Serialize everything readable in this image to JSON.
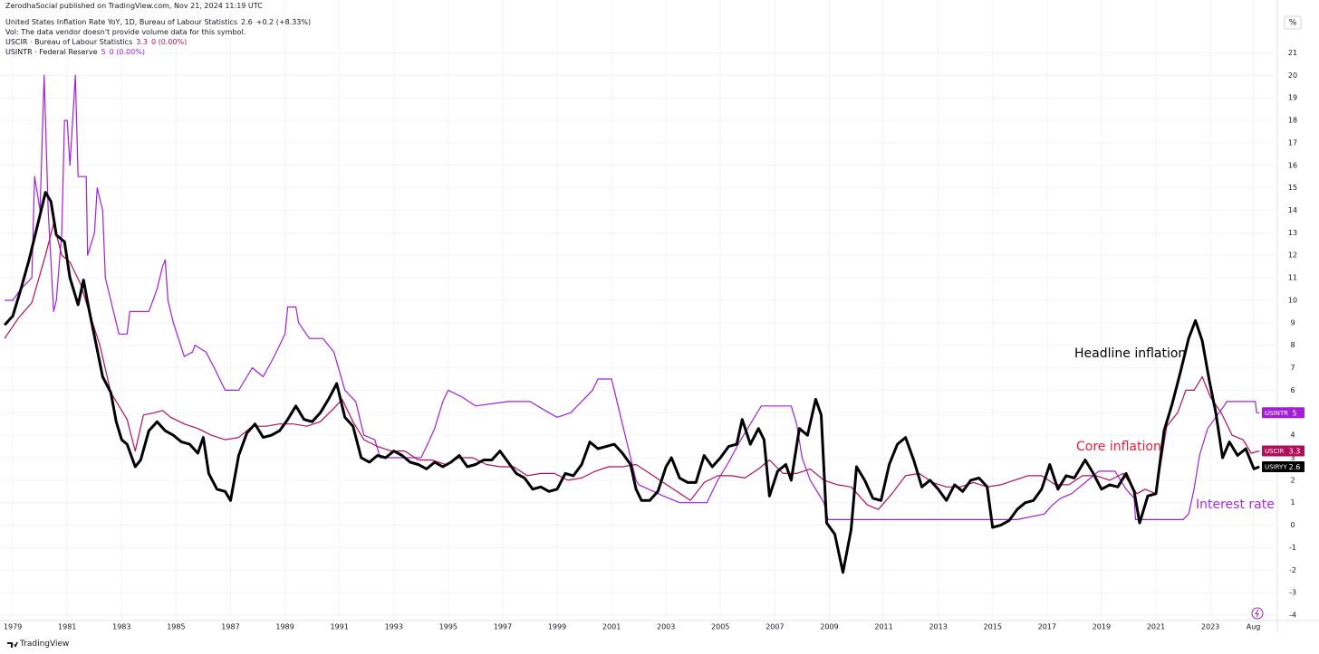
{
  "header": {
    "published": "ZerodhaSocial published on TradingView.com, Nov 21, 2024 11:19 UTC",
    "volume_note": "Vol: The data vendor doesn't provide volume data for this symbol.",
    "unit": "%",
    "footer": "TradingView"
  },
  "chart_data": {
    "type": "line",
    "annotations": [
      "Headline inflation",
      "Core inflation",
      "Interest rate"
    ],
    "xlim": [
      1978.53,
      2025.46
    ],
    "xticks": [
      1979,
      1981,
      1983,
      1985,
      1987,
      1989,
      1991,
      1993,
      1995,
      1997,
      1999,
      2001,
      2003,
      2005,
      2007,
      2009,
      2011,
      2013,
      2015,
      2017,
      2019,
      2021,
      2023,
      {
        "value": 2024.58,
        "label": "Aug"
      }
    ],
    "ylim": [
      -4.4,
      22.95
    ],
    "yticks": [
      -4,
      -3,
      -2,
      -1,
      0,
      1,
      2,
      3,
      4,
      5,
      6,
      7,
      8,
      9,
      10,
      11,
      12,
      13,
      14,
      15,
      16,
      17,
      18,
      19,
      20,
      21
    ],
    "grid": true,
    "series": [
      {
        "name": "United States Inflation Rate YoY, 1D, Bureau of Labour Statistics",
        "symbol": "USIRYY",
        "last": 2.6,
        "change": "+0.2 (+8.33%)",
        "color": "#000000",
        "width": 3,
        "x": [
          1978.7,
          1979.0,
          1979.3,
          1979.6,
          1979.9,
          1980.2,
          1980.4,
          1980.6,
          1980.9,
          1981.1,
          1981.4,
          1981.6,
          1981.8,
          1982.0,
          1982.3,
          1982.6,
          1982.8,
          1983.0,
          1983.2,
          1983.5,
          1983.7,
          1984.0,
          1984.3,
          1984.6,
          1984.9,
          1985.2,
          1985.5,
          1985.8,
          1986.0,
          1986.2,
          1986.5,
          1986.8,
          1987.0,
          1987.3,
          1987.6,
          1987.9,
          1988.2,
          1988.5,
          1988.8,
          1989.1,
          1989.4,
          1989.7,
          1990.0,
          1990.3,
          1990.6,
          1990.9,
          1991.2,
          1991.5,
          1991.8,
          1992.1,
          1992.4,
          1992.7,
          1993.0,
          1993.3,
          1993.6,
          1993.9,
          1994.2,
          1994.5,
          1994.8,
          1995.1,
          1995.4,
          1995.7,
          1996.0,
          1996.3,
          1996.6,
          1996.9,
          1997.2,
          1997.5,
          1997.8,
          1998.1,
          1998.4,
          1998.7,
          1999.0,
          1999.3,
          1999.6,
          1999.9,
          2000.2,
          2000.5,
          2000.8,
          2001.1,
          2001.4,
          2001.7,
          2001.9,
          2002.1,
          2002.4,
          2002.7,
          2003.0,
          2003.2,
          2003.5,
          2003.8,
          2004.1,
          2004.4,
          2004.7,
          2005.0,
          2005.3,
          2005.6,
          2005.8,
          2006.1,
          2006.4,
          2006.6,
          2006.8,
          2007.1,
          2007.4,
          2007.6,
          2007.9,
          2008.2,
          2008.5,
          2008.7,
          2008.9,
          2009.2,
          2009.5,
          2009.8,
          2010.0,
          2010.3,
          2010.6,
          2010.9,
          2011.2,
          2011.5,
          2011.8,
          2012.1,
          2012.4,
          2012.7,
          2013.0,
          2013.3,
          2013.6,
          2013.9,
          2014.2,
          2014.5,
          2014.8,
          2015.0,
          2015.3,
          2015.6,
          2015.9,
          2016.2,
          2016.5,
          2016.8,
          2017.1,
          2017.4,
          2017.7,
          2018.0,
          2018.4,
          2018.7,
          2019.0,
          2019.3,
          2019.6,
          2019.9,
          2020.2,
          2020.4,
          2020.7,
          2021.0,
          2021.3,
          2021.6,
          2021.9,
          2022.2,
          2022.45,
          2022.7,
          2022.95,
          2023.2,
          2023.45,
          2023.7,
          2024.0,
          2024.3,
          2024.6,
          2024.8
        ],
        "values": [
          8.9,
          9.3,
          10.5,
          11.8,
          13.3,
          14.8,
          14.4,
          12.9,
          12.6,
          11.0,
          9.8,
          10.9,
          9.6,
          8.4,
          6.6,
          5.9,
          4.6,
          3.8,
          3.6,
          2.6,
          2.9,
          4.2,
          4.6,
          4.2,
          4.0,
          3.7,
          3.6,
          3.2,
          3.9,
          2.3,
          1.6,
          1.5,
          1.1,
          3.1,
          4.1,
          4.5,
          3.9,
          4.0,
          4.2,
          4.7,
          5.3,
          4.7,
          4.6,
          5.0,
          5.6,
          6.3,
          4.8,
          4.4,
          3.0,
          2.8,
          3.1,
          3.0,
          3.3,
          3.1,
          2.8,
          2.7,
          2.5,
          2.8,
          2.6,
          2.8,
          3.1,
          2.6,
          2.7,
          2.9,
          2.9,
          3.3,
          2.8,
          2.3,
          2.1,
          1.6,
          1.7,
          1.5,
          1.6,
          2.3,
          2.2,
          2.7,
          3.7,
          3.4,
          3.5,
          3.6,
          3.2,
          2.7,
          1.6,
          1.1,
          1.1,
          1.5,
          2.6,
          3.0,
          2.1,
          1.9,
          1.9,
          3.1,
          2.6,
          3.0,
          3.5,
          3.6,
          4.7,
          3.6,
          4.3,
          3.8,
          1.3,
          2.4,
          2.7,
          2.0,
          4.3,
          4.0,
          5.6,
          4.9,
          0.1,
          -0.4,
          -2.1,
          -0.2,
          2.6,
          2.0,
          1.2,
          1.1,
          2.7,
          3.6,
          3.9,
          2.9,
          1.7,
          2.0,
          1.6,
          1.1,
          1.8,
          1.5,
          2.0,
          2.1,
          1.7,
          -0.1,
          0.0,
          0.2,
          0.7,
          1.0,
          1.1,
          1.6,
          2.7,
          1.6,
          2.2,
          2.1,
          2.9,
          2.3,
          1.6,
          1.8,
          1.7,
          2.3,
          1.5,
          0.1,
          1.3,
          1.4,
          4.2,
          5.4,
          6.8,
          8.3,
          9.1,
          8.2,
          6.5,
          5.0,
          3.0,
          3.7,
          3.1,
          3.4,
          2.5,
          2.6
        ]
      },
      {
        "name": "USCIR · Bureau of Labour Statistics",
        "symbol": "USCIR",
        "last": 3.3,
        "change": "0 (0.00%)",
        "color": "#b0105a",
        "width": 1.2,
        "x": [
          1978.7,
          1979.2,
          1979.7,
          1980.2,
          1980.5,
          1980.8,
          1981.1,
          1981.5,
          1981.8,
          1982.2,
          1982.6,
          1982.9,
          1983.2,
          1983.5,
          1983.8,
          1984.2,
          1984.5,
          1984.8,
          1985.3,
          1985.8,
          1986.3,
          1986.8,
          1987.3,
          1987.8,
          1988.3,
          1988.8,
          1989.3,
          1989.8,
          1990.3,
          1990.8,
          1991.1,
          1991.5,
          1991.9,
          1992.4,
          1992.9,
          1993.4,
          1993.9,
          1994.4,
          1994.9,
          1995.4,
          1995.9,
          1996.4,
          1996.9,
          1997.4,
          1997.9,
          1998.4,
          1998.9,
          1999.4,
          1999.9,
          2000.4,
          2000.9,
          2001.4,
          2001.9,
          2002.4,
          2002.9,
          2003.4,
          2003.9,
          2004.4,
          2004.9,
          2005.4,
          2005.9,
          2006.4,
          2006.8,
          2007.3,
          2007.8,
          2008.3,
          2008.8,
          2009.3,
          2009.8,
          2010.4,
          2010.8,
          2011.3,
          2011.8,
          2012.3,
          2012.8,
          2013.3,
          2013.8,
          2014.3,
          2014.8,
          2015.3,
          2015.8,
          2016.3,
          2016.8,
          2017.3,
          2017.8,
          2018.3,
          2018.8,
          2019.3,
          2019.8,
          2020.3,
          2020.6,
          2021.0,
          2021.4,
          2021.8,
          2022.1,
          2022.4,
          2022.7,
          2023.0,
          2023.4,
          2023.8,
          2024.2,
          2024.5,
          2024.8
        ],
        "values": [
          8.3,
          9.2,
          9.9,
          12.0,
          13.4,
          12.0,
          11.7,
          10.7,
          9.5,
          8.0,
          5.9,
          5.3,
          4.7,
          3.3,
          4.9,
          5.0,
          5.1,
          4.8,
          4.5,
          4.3,
          4.0,
          3.8,
          3.9,
          4.4,
          4.4,
          4.5,
          4.5,
          4.4,
          4.6,
          5.2,
          5.6,
          4.6,
          3.8,
          3.5,
          3.3,
          3.3,
          2.9,
          2.9,
          2.7,
          3.0,
          3.0,
          2.7,
          2.6,
          2.6,
          2.2,
          2.3,
          2.3,
          2.0,
          2.1,
          2.4,
          2.6,
          2.6,
          2.7,
          2.3,
          1.9,
          1.5,
          1.1,
          1.9,
          2.2,
          2.2,
          2.1,
          2.5,
          2.9,
          2.3,
          2.3,
          2.5,
          2.0,
          1.8,
          1.7,
          0.9,
          0.7,
          1.4,
          2.2,
          2.3,
          1.9,
          1.7,
          1.7,
          1.9,
          1.7,
          1.8,
          2.0,
          2.2,
          2.2,
          1.8,
          1.8,
          2.2,
          2.2,
          2.0,
          2.3,
          1.4,
          1.6,
          1.4,
          4.4,
          5.0,
          6.0,
          6.0,
          6.6,
          5.7,
          5.0,
          4.0,
          3.8,
          3.2,
          3.3
        ]
      },
      {
        "name": "USINTR · Federal Reserve",
        "symbol": "USINTR",
        "last": 5,
        "change": "0 (0.00%)",
        "color": "#a020d8",
        "width": 1.2,
        "x": [
          1978.7,
          1979.0,
          1979.3,
          1979.7,
          1979.8,
          1980.0,
          1980.15,
          1980.3,
          1980.5,
          1980.6,
          1980.8,
          1980.9,
          1981.0,
          1981.1,
          1981.3,
          1981.4,
          1981.7,
          1981.75,
          1982.0,
          1982.1,
          1982.3,
          1982.4,
          1982.6,
          1982.9,
          1983.2,
          1983.3,
          1984.0,
          1984.3,
          1984.5,
          1984.6,
          1984.7,
          1984.9,
          1985.3,
          1985.6,
          1985.7,
          1986.1,
          1986.4,
          1986.8,
          1987.3,
          1987.6,
          1987.8,
          1988.2,
          1988.6,
          1989.0,
          1989.1,
          1989.4,
          1989.5,
          1989.9,
          1990.4,
          1990.8,
          1991.2,
          1991.6,
          1991.9,
          1992.3,
          1992.5,
          1993.0,
          1994.0,
          1994.2,
          1994.5,
          1994.8,
          1995.0,
          1995.5,
          1996.0,
          1997.2,
          1998.0,
          1998.7,
          1999.0,
          1999.5,
          1999.9,
          2000.3,
          2000.5,
          2001.0,
          2001.3,
          2001.6,
          2001.9,
          2002.0,
          2002.9,
          2003.5,
          2004.5,
          2004.9,
          2005.3,
          2005.7,
          2006.1,
          2006.5,
          2007.6,
          2007.8,
          2008.0,
          2008.3,
          2008.8,
          2008.95,
          2015.9,
          2016.9,
          2017.2,
          2017.5,
          2017.9,
          2018.2,
          2018.5,
          2018.9,
          2019.5,
          2019.7,
          2019.9,
          2020.2,
          2020.25,
          2022.0,
          2022.2,
          2022.4,
          2022.6,
          2022.9,
          2023.2,
          2023.5,
          2023.6,
          2024.65,
          2024.7,
          2024.8
        ],
        "values": [
          10.0,
          10.0,
          10.5,
          11.0,
          15.5,
          14.0,
          20.0,
          14.0,
          9.5,
          10.0,
          13.0,
          18.0,
          18.0,
          16.0,
          20.0,
          15.5,
          15.5,
          12.0,
          13.0,
          15.0,
          14.0,
          11.0,
          10.0,
          8.5,
          8.5,
          9.5,
          9.5,
          10.5,
          11.5,
          11.8,
          10.0,
          9.0,
          7.5,
          7.7,
          8.0,
          7.7,
          7.0,
          6.0,
          6.0,
          6.6,
          7.0,
          6.6,
          7.5,
          8.5,
          9.7,
          9.7,
          9.0,
          8.3,
          8.3,
          7.7,
          6.0,
          5.5,
          4.0,
          3.8,
          3.0,
          3.0,
          3.0,
          3.5,
          4.3,
          5.5,
          6.0,
          5.7,
          5.3,
          5.5,
          5.5,
          5.0,
          4.8,
          5.0,
          5.5,
          6.0,
          6.5,
          6.5,
          5.0,
          3.5,
          2.0,
          1.8,
          1.3,
          1.0,
          1.0,
          2.0,
          2.8,
          3.7,
          4.5,
          5.3,
          5.3,
          4.5,
          3.0,
          2.0,
          1.0,
          0.25,
          0.25,
          0.5,
          0.9,
          1.2,
          1.4,
          1.7,
          2.0,
          2.4,
          2.4,
          2.0,
          1.6,
          1.2,
          0.25,
          0.25,
          0.5,
          1.6,
          3.1,
          4.3,
          4.8,
          5.3,
          5.5,
          5.5,
          5.0,
          5.0
        ]
      }
    ]
  }
}
